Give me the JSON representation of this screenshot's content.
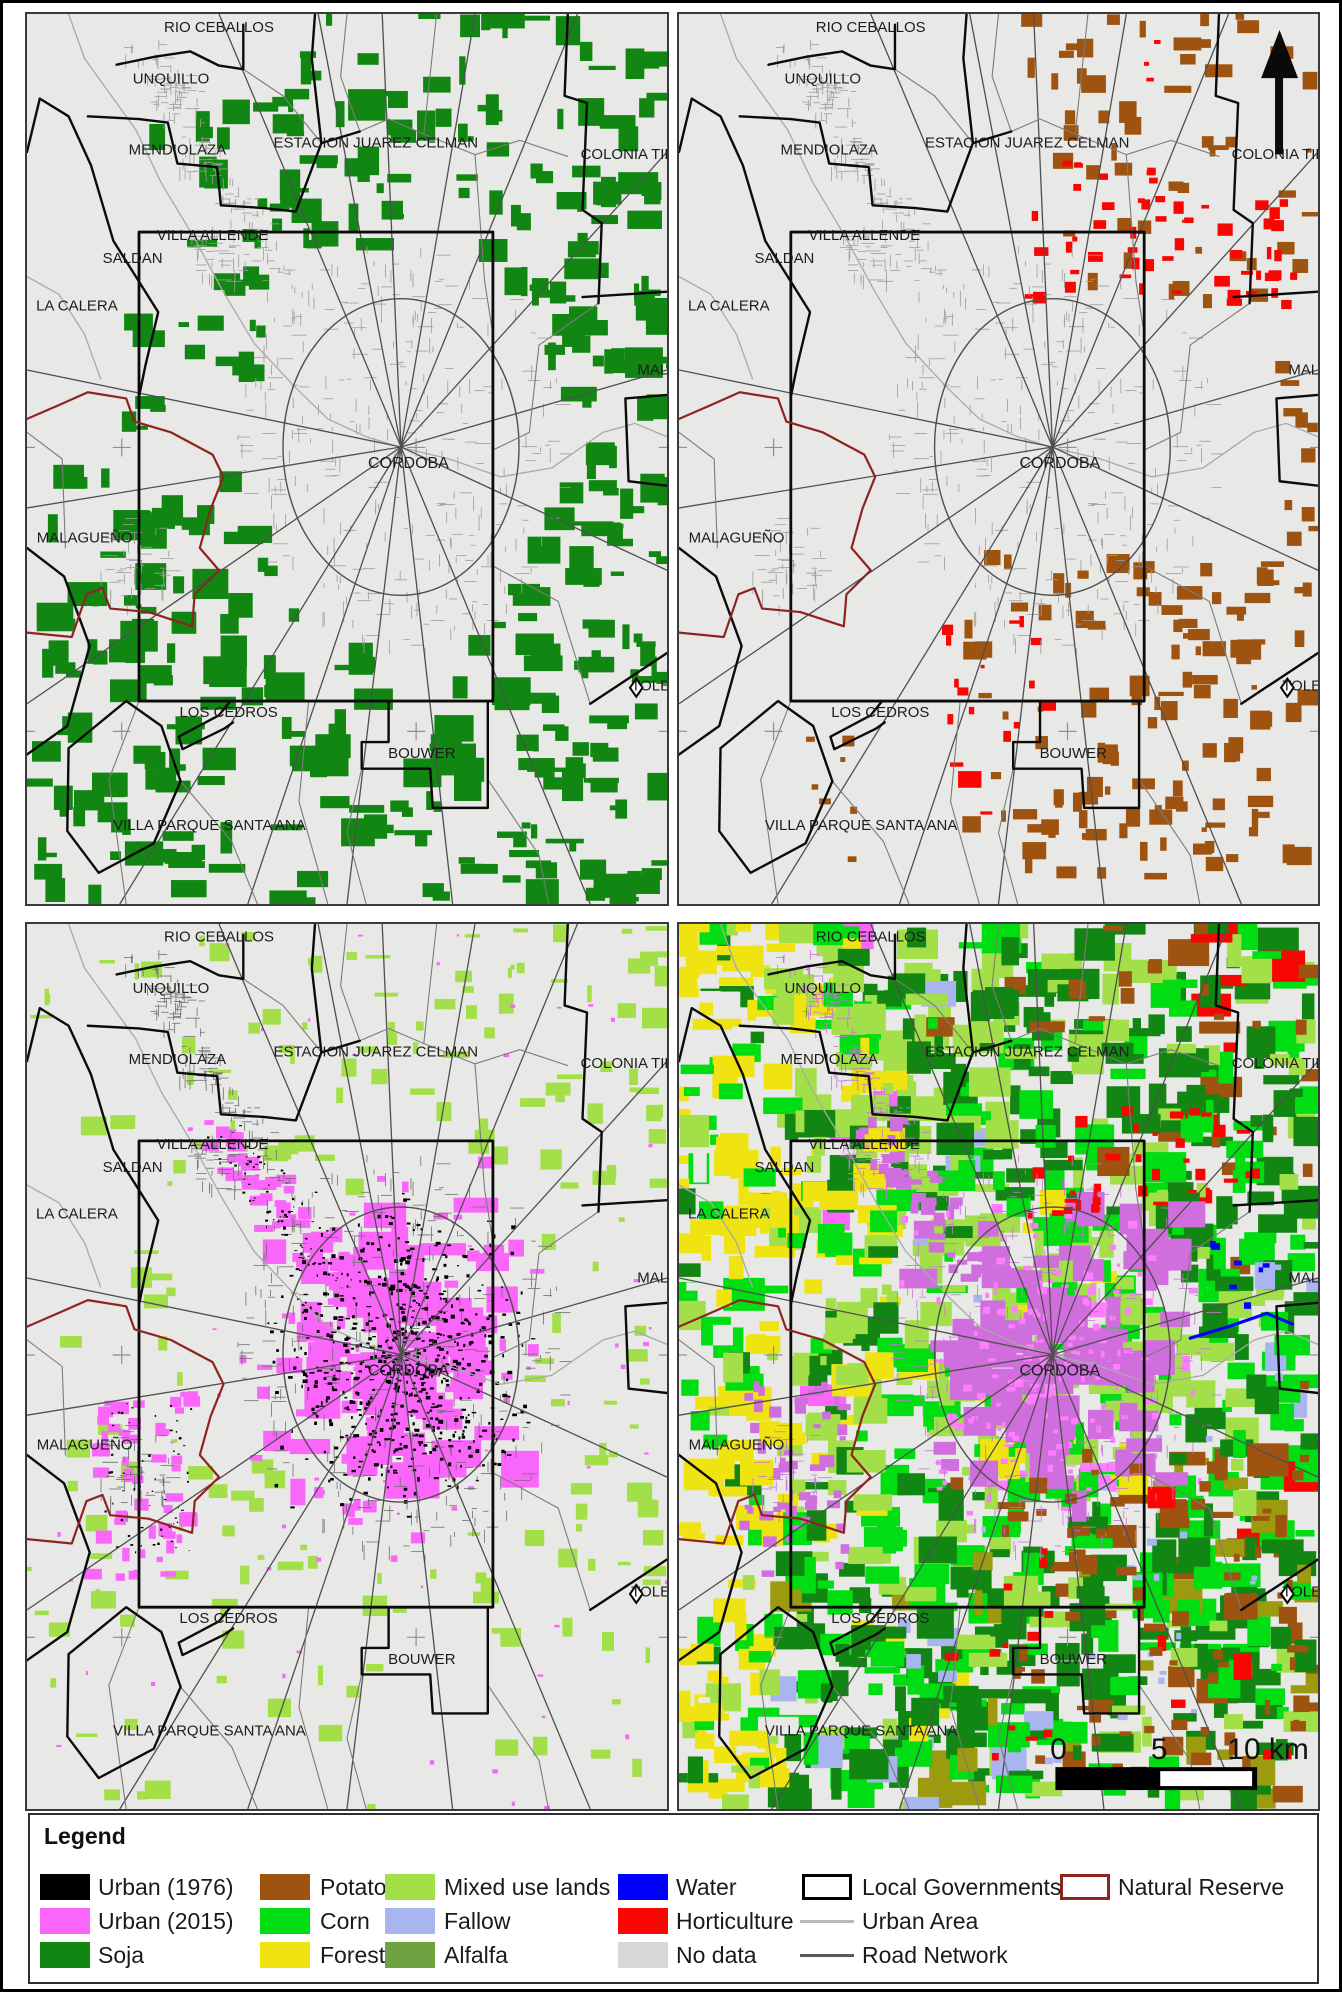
{
  "figure": {
    "description": "Four-panel land use map of Cordoba metropolitan area with legend",
    "background": "#ffffff"
  },
  "colors": {
    "map_bg": "#e8e8e6",
    "panel_border": "#3a3a3a",
    "figure_border": "#000000",
    "label_text": "#1c1c1c",
    "road": "#4f4f4f",
    "minor_boundary": "#7b7b7b",
    "urban_grid": "#9c9c9c",
    "urban_grid_dark": "#6e6e6e",
    "urban_grid_violet": "#c873d8",
    "reserve": "#8e2420",
    "gov": "#0b0b0b",
    "river": "#a9a9a9",
    "khaki": "#9c9b10",
    "violet_urban": "#d06ede",
    "pink_speck": "#ff7dff",
    "scalebar_text": "#111111"
  },
  "legend": {
    "title": "Legend",
    "fill_items": [
      {
        "label": "Urban (1976)",
        "color": "#000000",
        "col": 0,
        "row": 0
      },
      {
        "label": "Urban (2015)",
        "color": "#fa66fa",
        "col": 0,
        "row": 1
      },
      {
        "label": "Soja",
        "color": "#128612",
        "col": 0,
        "row": 2
      },
      {
        "label": "Potato",
        "color": "#9e5410",
        "col": 1,
        "row": 0
      },
      {
        "label": "Corn",
        "color": "#00dd12",
        "col": 1,
        "row": 1
      },
      {
        "label": "Forest",
        "color": "#efe412",
        "col": 1,
        "row": 2
      },
      {
        "label": "Mixed use lands",
        "color": "#a2df49",
        "col": 2,
        "row": 0
      },
      {
        "label": "Fallow",
        "color": "#a9b5ee",
        "col": 2,
        "row": 1
      },
      {
        "label": "Alfalfa",
        "color": "#6fa342",
        "col": 2,
        "row": 2
      },
      {
        "label": "Water",
        "color": "#0000fe",
        "col": 3,
        "row": 0
      },
      {
        "label": "Horticulture",
        "color": "#f90603",
        "col": 3,
        "row": 1
      },
      {
        "label": "No data",
        "color": "#d8d8d6",
        "col": 3,
        "row": 2
      }
    ],
    "outline_items": [
      {
        "label": "Local Governments",
        "color": "#000000",
        "col": 4,
        "row": 0
      },
      {
        "label": "Natural Reserve",
        "color": "#8e2420",
        "col": 5,
        "row": 0
      }
    ],
    "line_items": [
      {
        "label": "Urban Area",
        "color": "#b9b9b9",
        "col": 4,
        "row": 1
      },
      {
        "label": "Road Network",
        "color": "#5a5a5a",
        "col": 4,
        "row": 2
      }
    ]
  },
  "place_labels": [
    {
      "name": "RIO CEBALLOS",
      "fx": 0.3,
      "fy": 0.02
    },
    {
      "name": "UNQUILLO",
      "fx": 0.225,
      "fy": 0.078
    },
    {
      "name": "MENDIOLAZA",
      "fx": 0.235,
      "fy": 0.158
    },
    {
      "name": "ESTACION JUAREZ CELMAN",
      "fx": 0.545,
      "fy": 0.15
    },
    {
      "name": "COLONIA TIROLESA",
      "fx": 0.978,
      "fy": 0.163
    },
    {
      "name": "VILLA ALLENDE",
      "fx": 0.29,
      "fy": 0.254
    },
    {
      "name": "SALDAN",
      "fx": 0.165,
      "fy": 0.28
    },
    {
      "name": "LA CALERA",
      "fx": 0.078,
      "fy": 0.333
    },
    {
      "name": "MALVINAS",
      "fx": 1.012,
      "fy": 0.405
    },
    {
      "name": "CORDOBA",
      "fx": 0.596,
      "fy": 0.51
    },
    {
      "name": "MALAGUEÑO",
      "fx": 0.09,
      "fy": 0.594
    },
    {
      "name": "TOLEDO",
      "fx": 0.992,
      "fy": 0.76
    },
    {
      "name": "LOS CEDROS",
      "fx": 0.315,
      "fy": 0.79
    },
    {
      "name": "BOUWER",
      "fx": 0.617,
      "fy": 0.836
    },
    {
      "name": "VILLA PARQUE SANTA ANA",
      "fx": 0.285,
      "fy": 0.917
    }
  ],
  "panels": [
    {
      "id": "tl",
      "name": "map-panel-soja",
      "theme": "soja"
    },
    {
      "id": "tr",
      "name": "map-panel-potato-horticulture",
      "theme": "potato_horticulture",
      "north_arrow": true
    },
    {
      "id": "bl",
      "name": "map-panel-urban-growth",
      "theme": "urban_growth"
    },
    {
      "id": "br",
      "name": "map-panel-land-use-2015",
      "theme": "full_classification",
      "scalebar": true
    }
  ],
  "scalebar": {
    "labels": [
      "0",
      "5",
      "10 km"
    ]
  }
}
